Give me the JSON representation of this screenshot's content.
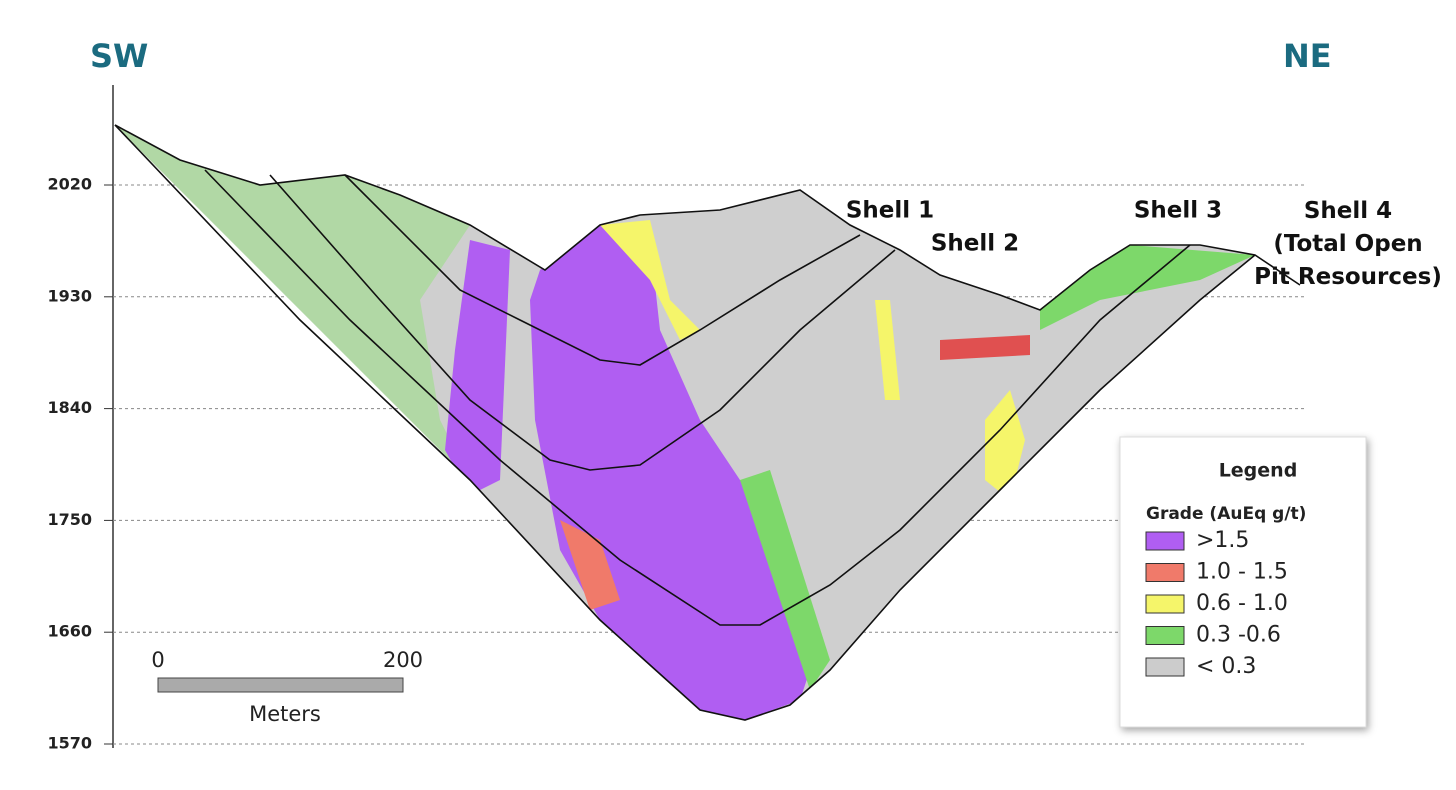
{
  "header": {
    "left": "SW",
    "right": "NE"
  },
  "axis": {
    "ticks": [
      2020,
      1930,
      1840,
      1750,
      1660,
      1570
    ]
  },
  "shells": [
    {
      "label": "Shell 1"
    },
    {
      "label": "Shell 2"
    },
    {
      "label": "Shell 3"
    },
    {
      "label": "Shell 4\n(Total Open\nPit Resources)"
    }
  ],
  "scale_bar": {
    "start": "0",
    "end": "200",
    "unit": "Meters"
  },
  "legend": {
    "title": "Legend",
    "subtitle": "Grade (AuEq g/t)",
    "items": [
      {
        "label": ">1.5",
        "color": "#b05ef2"
      },
      {
        "label": "1.0 - 1.5",
        "color": "#f07a6a"
      },
      {
        "label": "0.6 - 1.0",
        "color": "#f5f56a"
      },
      {
        "label": "0.3 -0.6",
        "color": "#7dd86a"
      },
      {
        "label": "<  0.3",
        "color": "#cccccc"
      }
    ]
  }
}
